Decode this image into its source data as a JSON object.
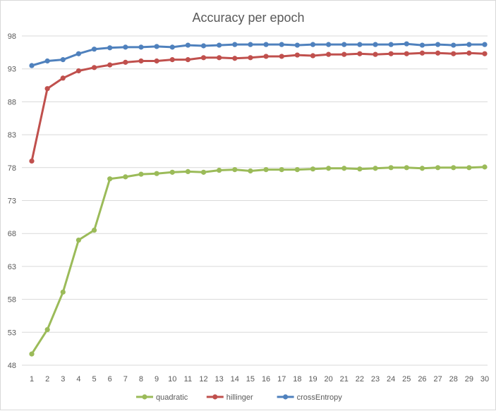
{
  "chart_data": {
    "type": "line",
    "title": "Accuracy per epoch",
    "xlabel": "",
    "ylabel": "",
    "x": [
      1,
      2,
      3,
      4,
      5,
      6,
      7,
      8,
      9,
      10,
      11,
      12,
      13,
      14,
      15,
      16,
      17,
      18,
      19,
      20,
      21,
      22,
      23,
      24,
      25,
      26,
      27,
      28,
      29,
      30
    ],
    "yticks": [
      48,
      53,
      58,
      63,
      68,
      73,
      78,
      83,
      88,
      93,
      98
    ],
    "ylim": [
      48,
      98
    ],
    "grid": true,
    "legend_position": "bottom",
    "series": [
      {
        "name": "quadratic",
        "color": "#9bbb59",
        "values": [
          49.7,
          53.4,
          59.1,
          67.0,
          68.5,
          76.3,
          76.6,
          77.0,
          77.1,
          77.3,
          77.4,
          77.3,
          77.6,
          77.7,
          77.5,
          77.7,
          77.7,
          77.7,
          77.8,
          77.9,
          77.9,
          77.8,
          77.9,
          78.0,
          78.0,
          77.9,
          78.0,
          78.0,
          78.0,
          78.1
        ]
      },
      {
        "name": "hillinger",
        "color": "#c0504d",
        "values": [
          79.0,
          90.0,
          91.6,
          92.7,
          93.2,
          93.6,
          94.0,
          94.2,
          94.2,
          94.4,
          94.4,
          94.7,
          94.7,
          94.6,
          94.7,
          94.9,
          94.9,
          95.1,
          95.0,
          95.2,
          95.2,
          95.3,
          95.2,
          95.3,
          95.3,
          95.4,
          95.4,
          95.3,
          95.4,
          95.3
        ]
      },
      {
        "name": "crossEntropy",
        "color": "#4f81bd",
        "values": [
          93.5,
          94.2,
          94.4,
          95.3,
          96.0,
          96.2,
          96.3,
          96.3,
          96.4,
          96.3,
          96.6,
          96.5,
          96.6,
          96.7,
          96.7,
          96.7,
          96.7,
          96.6,
          96.7,
          96.7,
          96.7,
          96.7,
          96.7,
          96.7,
          96.8,
          96.6,
          96.7,
          96.6,
          96.7,
          96.7
        ]
      }
    ]
  }
}
